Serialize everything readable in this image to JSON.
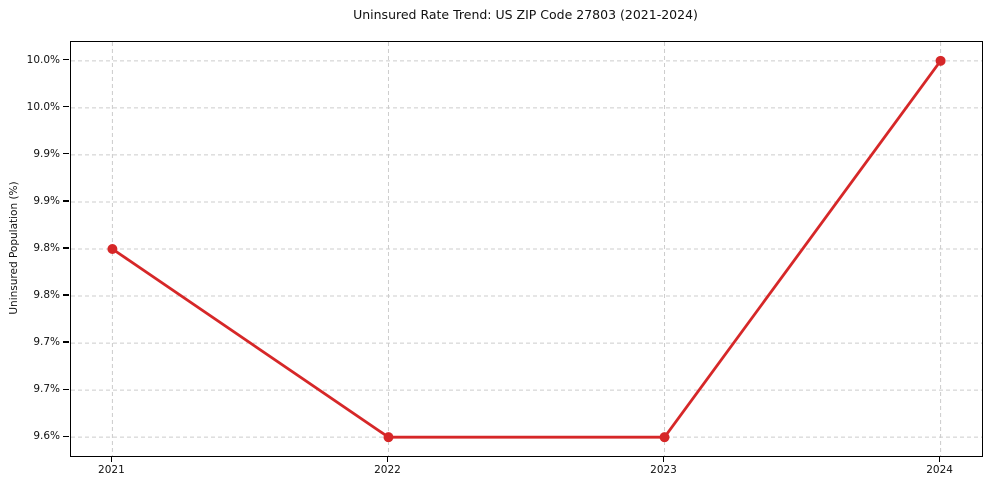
{
  "figure": {
    "background": "#ffffff"
  },
  "chart_data": {
    "type": "line",
    "title": "Uninsured Rate Trend: US ZIP Code 27803 (2021-2024)",
    "xlabel": "",
    "ylabel": "Uninsured Population (%)",
    "x": [
      2021,
      2022,
      2023,
      2024
    ],
    "values": [
      9.8,
      9.6,
      9.6,
      10.0
    ],
    "x_ticks": [
      {
        "value": 2021,
        "label": "2021"
      },
      {
        "value": 2022,
        "label": "2022"
      },
      {
        "value": 2023,
        "label": "2023"
      },
      {
        "value": 2024,
        "label": "2024"
      }
    ],
    "y_ticks": [
      {
        "value": 9.6,
        "label": "9.6%"
      },
      {
        "value": 9.65,
        "label": "9.7%"
      },
      {
        "value": 9.7,
        "label": "9.7%"
      },
      {
        "value": 9.75,
        "label": "9.8%"
      },
      {
        "value": 9.8,
        "label": "9.8%"
      },
      {
        "value": 9.85,
        "label": "9.9%"
      },
      {
        "value": 9.9,
        "label": "9.9%"
      },
      {
        "value": 9.95,
        "label": "10.0%"
      },
      {
        "value": 10.0,
        "label": "10.0%"
      }
    ],
    "xlim": [
      2020.85,
      2024.15
    ],
    "ylim": [
      9.58,
      10.02
    ],
    "grid": "dashed",
    "grid_color": "#cccccc",
    "line_color": "#d62728",
    "marker": "circle",
    "marker_radius": 5,
    "line_width": 2.8,
    "legend_position": "none"
  }
}
